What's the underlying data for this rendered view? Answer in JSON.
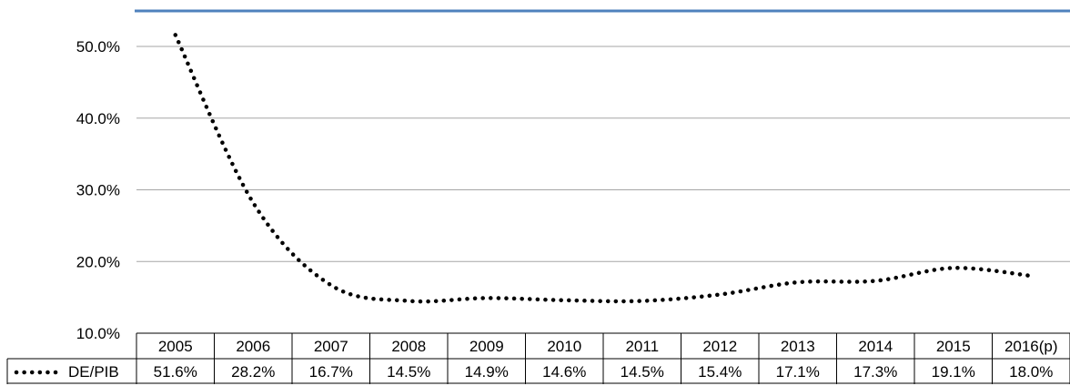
{
  "chart_data": {
    "type": "line",
    "title": "",
    "xlabel": "",
    "ylabel": "",
    "categories": [
      "2005",
      "2006",
      "2007",
      "2008",
      "2009",
      "2010",
      "2011",
      "2012",
      "2013",
      "2014",
      "2015",
      "2016(p)"
    ],
    "series": [
      {
        "name": "DE/PIB",
        "values": [
          51.6,
          28.2,
          16.7,
          14.5,
          14.9,
          14.6,
          14.5,
          15.4,
          17.1,
          17.3,
          19.1,
          18.0
        ],
        "labels": [
          "51.6%",
          "28.2%",
          "16.7%",
          "14.5%",
          "14.9%",
          "14.6%",
          "14.5%",
          "15.4%",
          "17.1%",
          "17.3%",
          "19.1%",
          "18.0%"
        ],
        "line_style": "dotted",
        "color": "#000000"
      }
    ],
    "ylim": [
      10,
      50
    ],
    "y_ticks": [
      "10.0%",
      "20.0%",
      "30.0%",
      "40.0%",
      "50.0%"
    ],
    "y_tick_values": [
      10,
      20,
      30,
      40,
      50
    ],
    "grid": true,
    "data_table": true,
    "colors": {
      "top_border": "#4f81bd",
      "gridline": "#a6a6a6",
      "table_border": "#000000"
    }
  }
}
